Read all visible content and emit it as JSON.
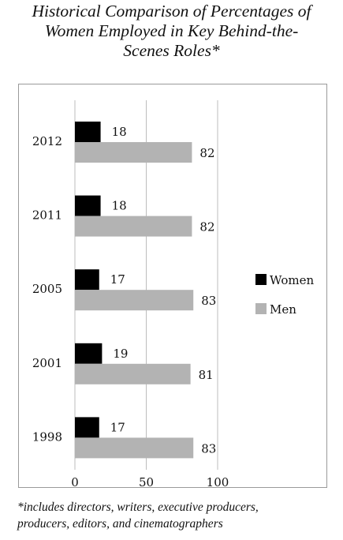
{
  "title_lines": [
    "Historical Comparison of Percentages of",
    "Women Employed in Key Behind-the-",
    "Scenes Roles*"
  ],
  "footnote_lines": [
    "*includes directors, writers, executive producers,",
    "producers, editors, and cinematographers"
  ],
  "colors": {
    "women": "#000000",
    "men": "#b3b3b3",
    "grid": "#bdbdbd"
  },
  "chart_data": {
    "type": "bar",
    "orientation": "horizontal",
    "categories": [
      "2012",
      "2011",
      "2005",
      "2001",
      "1998"
    ],
    "series": [
      {
        "name": "Women",
        "values": [
          18,
          18,
          17,
          19,
          17
        ]
      },
      {
        "name": "Men",
        "values": [
          82,
          82,
          83,
          81,
          83
        ]
      }
    ],
    "xlim": [
      0,
      100
    ],
    "xticks": [
      "0",
      "50",
      "100"
    ],
    "grid": "vertical",
    "legend_position": "right",
    "data_labels": true
  }
}
